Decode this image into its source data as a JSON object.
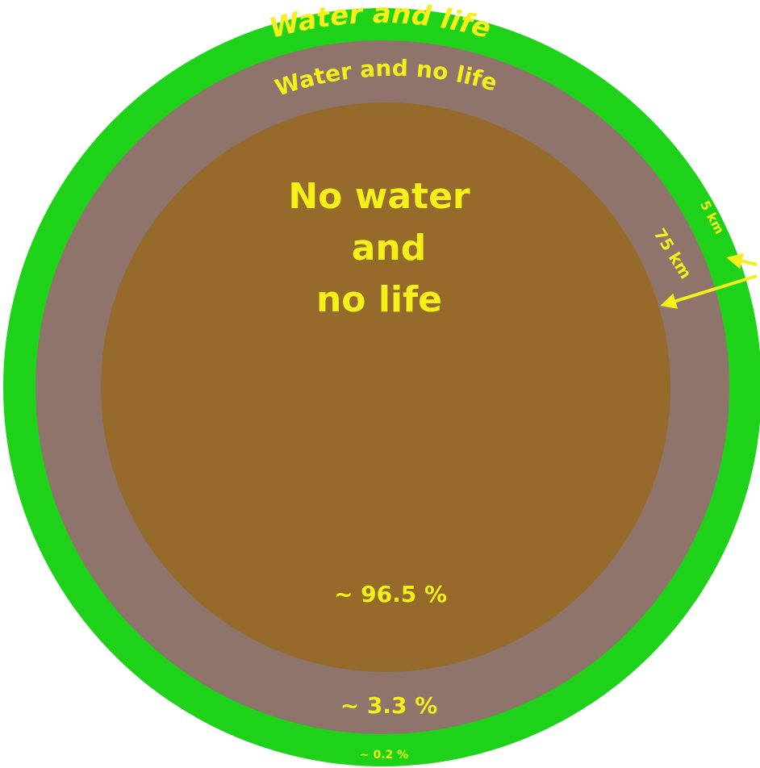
{
  "colors": {
    "outer_layer": "#1ed21a",
    "middle_layer": "#8e746a",
    "core": "#956a2a",
    "text": "#f5ef1a",
    "background": "#ffffff"
  },
  "layers": {
    "outer": {
      "label_part1": "Water ",
      "label_part2": "and ",
      "label_part3": "life",
      "percent": "~ 0.2 %"
    },
    "middle": {
      "label": "Water  and  no life",
      "percent": "~ 3.3 %"
    },
    "core": {
      "label_line1": "No water",
      "label_line2": "and",
      "label_line3": "no life",
      "percent": "~ 96.5 %"
    }
  },
  "depths": {
    "outer_thickness": "5 km",
    "middle_thickness": "75 km"
  }
}
